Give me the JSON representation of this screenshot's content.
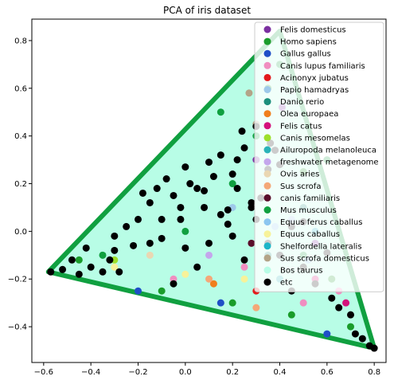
{
  "chart_data": {
    "type": "scatter",
    "title": "PCA of iris dataset",
    "xlim": [
      -0.65,
      0.85
    ],
    "ylim": [
      -0.55,
      0.89
    ],
    "x_ticks": [
      -0.6,
      -0.4,
      -0.2,
      0.0,
      0.2,
      0.4,
      0.6,
      0.8
    ],
    "y_ticks": [
      -0.4,
      -0.2,
      0.0,
      0.2,
      0.4,
      0.6,
      0.8
    ],
    "x_tick_labels": [
      "−0.6",
      "−0.4",
      "−0.2",
      "0.0",
      "0.2",
      "0.4",
      "0.6",
      "0.8"
    ],
    "y_tick_labels": [
      "−0.4",
      "−0.2",
      "0.0",
      "0.2",
      "0.4",
      "0.6",
      "0.8"
    ],
    "grid": false,
    "legend_position": "top-right",
    "region_vertices": [
      [
        -0.58,
        -0.17
      ],
      [
        0.4,
        0.84
      ],
      [
        0.8,
        -0.49
      ]
    ],
    "series": [
      {
        "name": "Felis domesticus",
        "color": "#7b2fa0",
        "points": [
          [
            0.41,
            0.52
          ],
          [
            0.55,
            -0.05
          ],
          [
            0.3,
            0.3
          ]
        ]
      },
      {
        "name": "Homo sapiens",
        "color": "#1a9c2a",
        "points": [
          [
            -0.45,
            -0.12
          ],
          [
            0.5,
            0.25
          ],
          [
            0.62,
            -0.2
          ],
          [
            0.35,
            0.6
          ],
          [
            0.2,
            -0.3
          ],
          [
            0.7,
            -0.4
          ],
          [
            -0.1,
            -0.25
          ],
          [
            0.45,
            -0.35
          ]
        ]
      },
      {
        "name": "Gallus gallus",
        "color": "#1f4fc7",
        "points": [
          [
            0.15,
            -0.3
          ],
          [
            0.6,
            -0.43
          ],
          [
            -0.2,
            -0.25
          ]
        ]
      },
      {
        "name": "Canis lupus familiaris",
        "color": "#f08ec0",
        "points": [
          [
            0.25,
            -0.15
          ],
          [
            0.5,
            -0.3
          ],
          [
            -0.05,
            -0.2
          ],
          [
            0.65,
            -0.25
          ]
        ]
      },
      {
        "name": "Acinonyx jubatus",
        "color": "#e31a1c",
        "points": [
          [
            0.3,
            -0.25
          ]
        ]
      },
      {
        "name": "Papio hamadryas",
        "color": "#9ec9ea",
        "points": [
          [
            0.45,
            0.05
          ],
          [
            0.2,
            0.1
          ]
        ]
      },
      {
        "name": "Danio rerio",
        "color": "#1c8f7c",
        "points": [
          [
            0.35,
            -0.1
          ],
          [
            0.5,
            0.1
          ]
        ]
      },
      {
        "name": "Olea europaea",
        "color": "#f07f1c",
        "points": [
          [
            0.12,
            -0.22
          ]
        ]
      },
      {
        "name": "Felis catus",
        "color": "#d4127b",
        "points": [
          [
            0.55,
            -0.2
          ],
          [
            0.68,
            -0.3
          ]
        ]
      },
      {
        "name": "Canis mesomelas",
        "color": "#9de02a",
        "points": [
          [
            -0.3,
            -0.12
          ]
        ]
      },
      {
        "name": "Ailuropoda melanoleuca",
        "color": "#2ab3b8",
        "points": [
          [
            0.4,
            -0.2
          ]
        ]
      },
      {
        "name": "freshwater metagenome",
        "color": "#c4a6ec",
        "points": [
          [
            0.1,
            -0.1
          ]
        ]
      },
      {
        "name": "Ovis aries",
        "color": "#ead7b2",
        "points": [
          [
            0.33,
            0.15
          ],
          [
            -0.15,
            -0.1
          ]
        ]
      },
      {
        "name": "Sus scrofa",
        "color": "#f4a878",
        "points": [
          [
            0.3,
            -0.32
          ],
          [
            0.1,
            -0.2
          ]
        ]
      },
      {
        "name": "canis familiaris",
        "color": "#5a0d2a",
        "points": [
          [
            0.28,
            -0.05
          ]
        ]
      },
      {
        "name": "Mus musculus",
        "color": "#10a040",
        "points": [
          [
            0.0,
            0.0
          ],
          [
            0.3,
            0.4
          ],
          [
            -0.35,
            -0.1
          ],
          [
            0.6,
            0.3
          ],
          [
            0.15,
            0.5
          ],
          [
            0.4,
            0.7
          ],
          [
            0.5,
            -0.1
          ],
          [
            0.2,
            0.2
          ]
        ]
      },
      {
        "name": "Equus ferus caballus",
        "color": "#8cc6f0",
        "points": [
          [
            0.38,
            0.02
          ],
          [
            0.52,
            -0.12
          ]
        ]
      },
      {
        "name": "Equus caballus",
        "color": "#f7f29a",
        "points": [
          [
            -0.3,
            -0.15
          ],
          [
            0.0,
            -0.18
          ],
          [
            0.25,
            -0.2
          ]
        ]
      },
      {
        "name": "Shelfordella lateralis",
        "color": "#1cb5c8",
        "points": [
          [
            0.55,
            0.0
          ]
        ]
      },
      {
        "name": "Sus scrofa domesticus",
        "color": "#b3a488",
        "points": [
          [
            0.27,
            0.58
          ],
          [
            0.3,
            0.45
          ]
        ]
      },
      {
        "name": "Bos taurus",
        "color": "#b8fde6",
        "points": [
          [
            0.1,
            0.3
          ],
          [
            0.2,
            0.4
          ],
          [
            0.3,
            0.5
          ],
          [
            0.0,
            0.1
          ],
          [
            0.4,
            0.3
          ],
          [
            0.55,
            0.15
          ],
          [
            -0.2,
            0.0
          ],
          [
            0.15,
            -0.05
          ],
          [
            0.35,
            0.2
          ],
          [
            0.6,
            -0.1
          ],
          [
            0.45,
            0.45
          ],
          [
            -0.4,
            -0.13
          ],
          [
            0.25,
            0.0
          ],
          [
            0.5,
            0.35
          ]
        ]
      },
      {
        "name": "etc",
        "color": "#000000",
        "points": [
          [
            -0.57,
            -0.17
          ],
          [
            -0.52,
            -0.16
          ],
          [
            -0.48,
            -0.12
          ],
          [
            -0.45,
            -0.18
          ],
          [
            -0.4,
            -0.15
          ],
          [
            -0.35,
            -0.17
          ],
          [
            -0.32,
            -0.12
          ],
          [
            -0.3,
            -0.02
          ],
          [
            -0.25,
            0.02
          ],
          [
            -0.2,
            0.05
          ],
          [
            -0.18,
            0.16
          ],
          [
            -0.15,
            0.12
          ],
          [
            -0.12,
            0.18
          ],
          [
            -0.1,
            0.05
          ],
          [
            -0.08,
            0.22
          ],
          [
            -0.05,
            0.15
          ],
          [
            -0.02,
            0.1
          ],
          [
            0.0,
            0.27
          ],
          [
            0.02,
            0.2
          ],
          [
            0.05,
            0.18
          ],
          [
            0.08,
            0.1
          ],
          [
            0.1,
            0.29
          ],
          [
            0.12,
            0.23
          ],
          [
            0.15,
            0.07
          ],
          [
            0.18,
            0.03
          ],
          [
            0.2,
            0.24
          ],
          [
            0.22,
            0.18
          ],
          [
            0.25,
            0.35
          ],
          [
            0.28,
            0.1
          ],
          [
            0.3,
            0.05
          ],
          [
            0.32,
            0.14
          ],
          [
            0.35,
            0.26
          ],
          [
            0.36,
            0.37
          ],
          [
            0.3,
            0.44
          ],
          [
            0.4,
            0.28
          ],
          [
            -0.28,
            -0.17
          ],
          [
            -0.22,
            -0.06
          ],
          [
            -0.15,
            -0.05
          ],
          [
            -0.3,
            -0.08
          ],
          [
            -0.42,
            -0.07
          ],
          [
            0.0,
            -0.07
          ],
          [
            0.1,
            -0.05
          ],
          [
            0.2,
            -0.02
          ],
          [
            0.25,
            -0.12
          ],
          [
            0.35,
            -0.05
          ],
          [
            0.45,
            0.02
          ],
          [
            0.5,
            -0.15
          ],
          [
            0.55,
            -0.22
          ],
          [
            0.6,
            -0.09
          ],
          [
            0.62,
            -0.28
          ],
          [
            0.65,
            -0.32
          ],
          [
            0.7,
            -0.35
          ],
          [
            0.72,
            -0.43
          ],
          [
            0.75,
            -0.45
          ],
          [
            0.78,
            -0.48
          ],
          [
            0.8,
            -0.49
          ],
          [
            0.45,
            -0.25
          ],
          [
            0.4,
            -0.1
          ],
          [
            0.05,
            -0.15
          ],
          [
            -0.05,
            -0.22
          ],
          [
            0.22,
            0.3
          ],
          [
            0.15,
            0.32
          ],
          [
            0.08,
            0.17
          ],
          [
            -0.02,
            0.05
          ],
          [
            0.28,
            0.12
          ],
          [
            0.18,
            0.09
          ],
          [
            -0.1,
            -0.03
          ],
          [
            0.38,
            0.34
          ],
          [
            0.24,
            0.42
          ],
          [
            0.5,
            0.04
          ]
        ]
      }
    ]
  }
}
